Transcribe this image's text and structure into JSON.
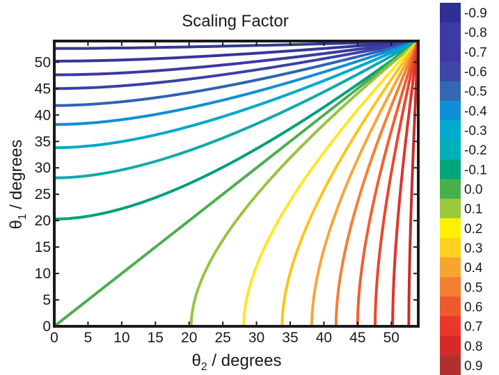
{
  "chart_data": {
    "type": "line",
    "title": "Scaling Factor",
    "xlabel": {
      "symbol": "θ",
      "sub": "2",
      "rest": " / degrees"
    },
    "ylabel": {
      "symbol": "θ",
      "sub": "1",
      "rest": " / degrees"
    },
    "xlim": [
      0,
      54
    ],
    "ylim": [
      0,
      54
    ],
    "xticks": [
      "0",
      "5",
      "10",
      "15",
      "20",
      "25",
      "30",
      "35",
      "40",
      "45",
      "50"
    ],
    "yticks": [
      "0",
      "5",
      "10",
      "15",
      "20",
      "25",
      "30",
      "35",
      "40",
      "45",
      "50"
    ],
    "grid": false,
    "colorbar_labels": [
      "-0.9",
      "-0.8",
      "-0.7",
      "-0.6",
      "-0.5",
      "-0.4",
      "-0.3",
      "-0.2",
      "-0.1",
      "0.0",
      "0.1",
      "0.2",
      "0.3",
      "0.4",
      "0.5",
      "0.6",
      "0.7",
      "0.8",
      "0.9"
    ],
    "colorbar_colors": [
      "#2e3192",
      "#3b3ca3",
      "#3f3aa3",
      "#3d47a8",
      "#3467b3",
      "#0f8fd6",
      "#00aacc",
      "#00b0b8",
      "#00a77c",
      "#48b04b",
      "#9bc83a",
      "#fff200",
      "#ffd21f",
      "#f7a531",
      "#f47e32",
      "#ef5a2d",
      "#e6392b",
      "#d62a2a",
      "#b03030"
    ],
    "series": [
      {
        "color": "#33388f",
        "start": [
          0,
          52.6
        ]
      },
      {
        "color": "#35359a",
        "start": [
          0,
          50.2
        ]
      },
      {
        "color": "#3a3aa2",
        "start": [
          0,
          47.6
        ]
      },
      {
        "color": "#3b40a6",
        "start": [
          0,
          45.0
        ]
      },
      {
        "color": "#2e63b4",
        "start": [
          0,
          41.8
        ]
      },
      {
        "color": "#0f8fd6",
        "start": [
          0,
          38.2
        ]
      },
      {
        "color": "#00a8cc",
        "start": [
          0,
          33.8
        ]
      },
      {
        "color": "#10a9a8",
        "start": [
          0,
          28.1
        ]
      },
      {
        "color": "#00a07a",
        "start": [
          0,
          20.3
        ]
      },
      {
        "color": "#4cae4e",
        "start": [
          0,
          0
        ]
      },
      {
        "color": "#96c53f",
        "start": [
          20.3,
          0
        ]
      },
      {
        "color": "#fde723",
        "start": [
          28.1,
          0
        ]
      },
      {
        "color": "#fcc419",
        "start": [
          33.8,
          0
        ]
      },
      {
        "color": "#f8a53a",
        "start": [
          38.2,
          0
        ]
      },
      {
        "color": "#f47f34",
        "start": [
          41.8,
          0
        ]
      },
      {
        "color": "#ef5f30",
        "start": [
          45.0,
          0
        ]
      },
      {
        "color": "#e9462d",
        "start": [
          47.6,
          0
        ]
      },
      {
        "color": "#e0332c",
        "start": [
          50.2,
          0
        ]
      },
      {
        "color": "#c52f2e",
        "start": [
          52.6,
          0
        ]
      }
    ],
    "end_point": [
      54,
      54
    ]
  }
}
